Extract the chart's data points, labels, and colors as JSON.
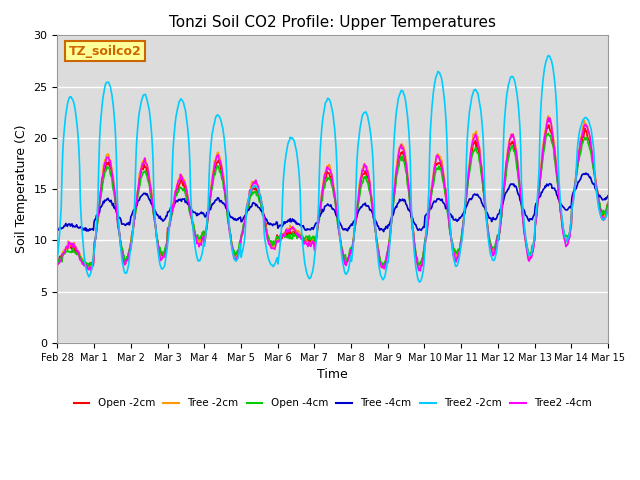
{
  "title": "Tonzi Soil CO2 Profile: Upper Temperatures",
  "xlabel": "Time",
  "ylabel": "Soil Temperature (C)",
  "ylim": [
    0,
    30
  ],
  "yticks": [
    0,
    5,
    10,
    15,
    20,
    25,
    30
  ],
  "background_color": "#dcdcdc",
  "label_box_text": "TZ_soilco2",
  "label_box_facecolor": "#ffff99",
  "label_box_edgecolor": "#cc6600",
  "series_colors": [
    "#ff0000",
    "#ff9900",
    "#00cc00",
    "#0000cc",
    "#00ccff",
    "#ff00ff"
  ],
  "series_labels": [
    "Open -2cm",
    "Tree -2cm",
    "Open -4cm",
    "Tree -4cm",
    "Tree2 -2cm",
    "Tree2 -4cm"
  ],
  "xtick_labels": [
    "Feb 28",
    "Mar 1",
    "Mar 2",
    "Mar 3",
    "Mar 4",
    "Mar 5",
    "Mar 6",
    "Mar 7",
    "Mar 8",
    "Mar 9",
    "Mar 10",
    "Mar 11",
    "Mar 12",
    "Mar 13",
    "Mar 14",
    "Mar 15"
  ],
  "n_days": 15,
  "points_per_day": 48,
  "cyan_peaks": [
    24.0,
    25.5,
    24.2,
    23.7,
    22.2,
    15.3,
    20.0,
    23.8,
    22.5,
    24.6,
    26.4,
    24.7,
    26.0,
    28.0,
    22.0
  ],
  "cyan_mins": [
    6.5,
    6.8,
    7.2,
    8.0,
    8.0,
    7.5,
    6.3,
    6.7,
    6.2,
    5.9,
    7.5,
    8.0,
    8.5,
    10.0,
    12.0
  ],
  "other_peaks": [
    9.5,
    18.0,
    17.5,
    16.0,
    18.0,
    15.5,
    11.0,
    17.0,
    17.0,
    19.0,
    18.0,
    20.0,
    20.0,
    21.5,
    21.0
  ],
  "other_mins": [
    7.5,
    8.0,
    8.5,
    10.0,
    8.5,
    9.5,
    10.0,
    8.0,
    7.5,
    7.5,
    8.5,
    9.0,
    8.5,
    10.0,
    12.5
  ],
  "blue_peaks": [
    11.5,
    14.0,
    14.5,
    14.0,
    14.0,
    13.5,
    12.0,
    13.5,
    13.5,
    14.0,
    14.0,
    14.5,
    15.5,
    15.5,
    16.5
  ],
  "blue_mins": [
    11.0,
    11.5,
    12.0,
    12.5,
    12.0,
    11.5,
    11.0,
    11.0,
    11.0,
    11.0,
    12.0,
    12.0,
    12.0,
    13.0,
    14.0
  ]
}
